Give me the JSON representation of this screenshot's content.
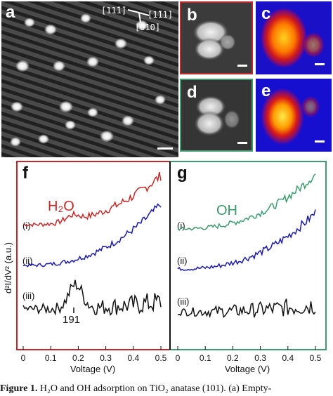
{
  "panels": {
    "a": {
      "label": "a",
      "directions": {
        "d1": "[11̄1̄]",
        "d2": "[1̄11]",
        "d3": "[010]"
      }
    },
    "b": {
      "label": "b"
    },
    "c": {
      "label": "c"
    },
    "d": {
      "label": "d"
    },
    "e": {
      "label": "e"
    }
  },
  "colors": {
    "frame_red": "#c0282d",
    "frame_green": "#3f9a6e",
    "curve_red": "#c62828",
    "curve_blue": "#1a1aa8",
    "curve_black": "#111111",
    "curve_green": "#3a9a6c"
  },
  "plot_f": {
    "label": "f",
    "molecule": "H₂O",
    "traces": [
      "(i)",
      "(ii)",
      "(iii)"
    ],
    "peak_label": "191"
  },
  "plot_g": {
    "label": "g",
    "molecule": "OH",
    "traces": [
      "(i)",
      "(ii)",
      "(iii)"
    ]
  },
  "shared": {
    "ylabel": "d²I/dV² (a.u.)",
    "xlabel_f": "Voltage (V)",
    "xlabel_g": "Voltage (V)"
  },
  "chart_data": {
    "type": "line",
    "xlabel": "Voltage (V)",
    "ylabel": "d²I/dV² (a.u.)",
    "xlim": [
      0,
      0.5
    ],
    "x_ticks": [
      "0",
      "0.1",
      "0.2",
      "0.3",
      "0.4",
      "0.5"
    ],
    "peak_annotation": {
      "x": 0.191,
      "label": "191"
    }
  },
  "caption": {
    "fig": "Figure 1.",
    "text": " H₂O and OH adsorption on TiO₂ anatase (101). (a) Empty-"
  }
}
